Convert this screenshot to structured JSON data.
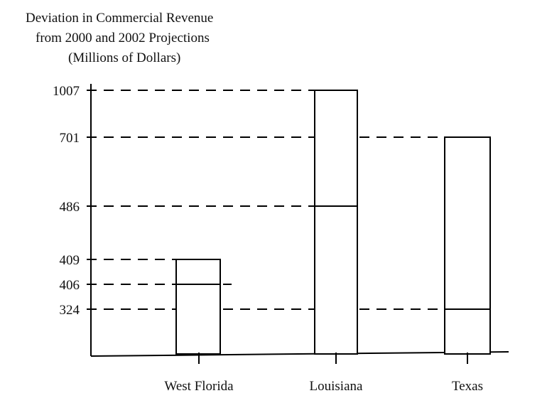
{
  "chart_data": {
    "type": "bar",
    "title": [
      "Deviation in Commercial Revenue",
      "from 2000 and 2002 Projections",
      "(Millions of Dollars)"
    ],
    "categories": [
      "West Florida",
      "Louisiana",
      "Texas"
    ],
    "series": [
      {
        "values": [
          406,
          486,
          324
        ]
      },
      {
        "values": [
          409,
          1007,
          701
        ]
      }
    ],
    "y_ticks": [
      1007,
      701,
      486,
      409,
      406,
      324
    ],
    "y_ticks_labels": [
      "1007",
      "701",
      "486",
      "409",
      "406",
      "324"
    ],
    "grid": "dashed reference lines at tick values",
    "legend": "none"
  }
}
